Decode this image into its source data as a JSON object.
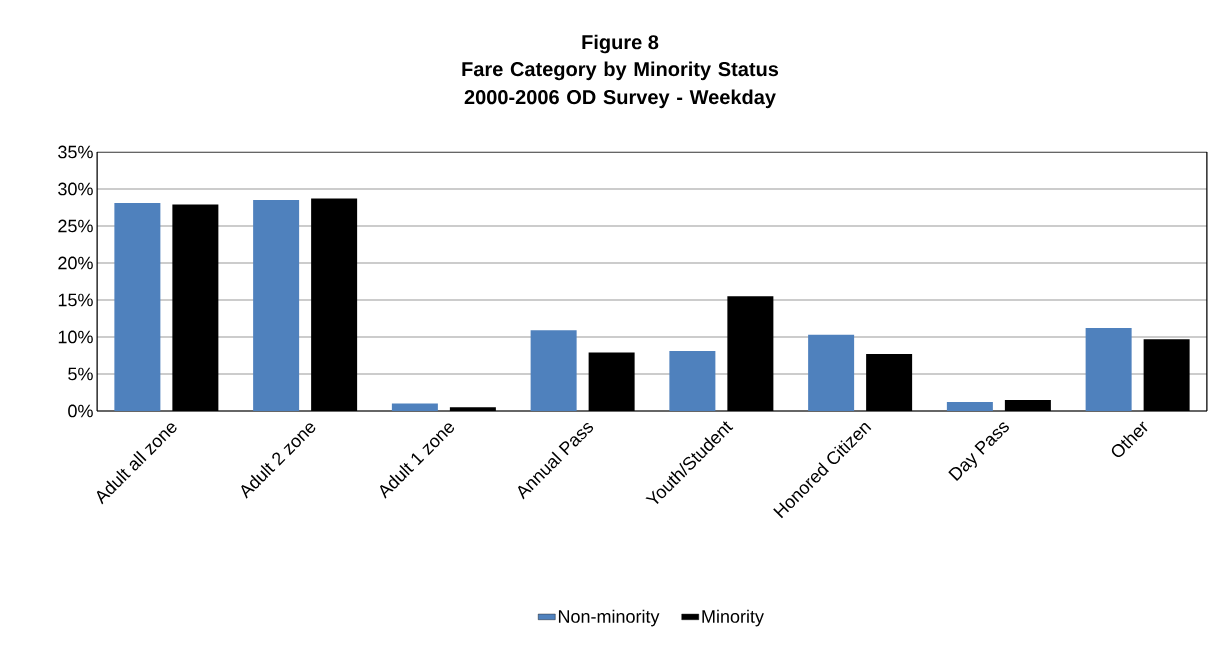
{
  "chart_data": {
    "type": "bar",
    "title": "Figure 8",
    "subtitle": "Fare Category by Minority Status 2000-2006 OD Survey - Weekday",
    "categories": [
      "Adult all zone",
      "Adult 2 zone",
      "Adult 1 zone",
      "Annual Pass",
      "Youth/Student",
      "Honored Citizen",
      "Day Pass",
      "Other"
    ],
    "series": [
      {
        "name": "Non-minority",
        "color": "#4f81bd",
        "values": [
          28.1,
          28.5,
          1.0,
          10.9,
          8.1,
          10.3,
          1.2,
          11.2
        ]
      },
      {
        "name": "Minority",
        "color": "#000000",
        "values": [
          27.9,
          28.7,
          0.5,
          7.9,
          15.5,
          7.7,
          1.5,
          9.7
        ]
      }
    ],
    "ylim": [
      0,
      35
    ],
    "yticks": [
      {
        "value": 0,
        "label": "0%"
      },
      {
        "value": 5,
        "label": "5%"
      },
      {
        "value": 10,
        "label": "10%"
      },
      {
        "value": 15,
        "label": "15%"
      },
      {
        "value": 20,
        "label": "20%"
      },
      {
        "value": 25,
        "label": "25%"
      },
      {
        "value": 30,
        "label": "30%"
      },
      {
        "value": 35,
        "label": "35%"
      }
    ],
    "grid": "y",
    "legend": "bottom"
  }
}
